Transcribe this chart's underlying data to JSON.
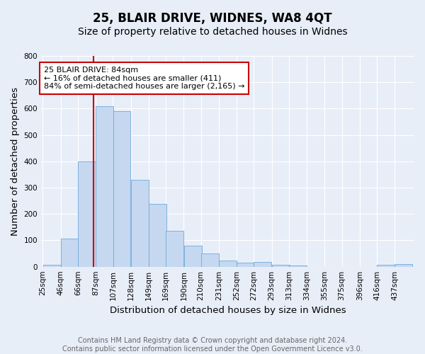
{
  "title": "25, BLAIR DRIVE, WIDNES, WA8 4QT",
  "subtitle": "Size of property relative to detached houses in Widnes",
  "xlabel": "Distribution of detached houses by size in Widnes",
  "ylabel": "Number of detached properties",
  "bin_labels": [
    "25sqm",
    "46sqm",
    "66sqm",
    "87sqm",
    "107sqm",
    "128sqm",
    "149sqm",
    "169sqm",
    "190sqm",
    "210sqm",
    "231sqm",
    "252sqm",
    "272sqm",
    "293sqm",
    "313sqm",
    "334sqm",
    "355sqm",
    "375sqm",
    "396sqm",
    "416sqm",
    "437sqm"
  ],
  "bin_left_edges": [
    25,
    46,
    66,
    87,
    107,
    128,
    149,
    169,
    190,
    210,
    231,
    252,
    272,
    293,
    313,
    334,
    355,
    375,
    396,
    416,
    437
  ],
  "bin_width": 21,
  "bar_heights": [
    8,
    107,
    400,
    610,
    590,
    330,
    238,
    135,
    79,
    51,
    23,
    16,
    18,
    8,
    4,
    0,
    0,
    0,
    0,
    8,
    10
  ],
  "bar_color": "#c5d8f0",
  "bar_edge_color": "#6eaadb",
  "property_size": 84,
  "vline_color": "#cc0000",
  "annotation_text": "25 BLAIR DRIVE: 84sqm\n← 16% of detached houses are smaller (411)\n84% of semi-detached houses are larger (2,165) →",
  "annotation_box_color": "#ffffff",
  "annotation_box_edge_color": "#cc0000",
  "ylim": [
    0,
    800
  ],
  "yticks": [
    0,
    100,
    200,
    300,
    400,
    500,
    600,
    700,
    800
  ],
  "footnote": "Contains HM Land Registry data © Crown copyright and database right 2024.\nContains public sector information licensed under the Open Government Licence v3.0.",
  "bg_color": "#e8eef8",
  "grid_color": "#ffffff",
  "title_fontsize": 12,
  "subtitle_fontsize": 10,
  "label_fontsize": 9.5,
  "tick_fontsize": 7.5,
  "footnote_fontsize": 7,
  "annot_fontsize": 8
}
